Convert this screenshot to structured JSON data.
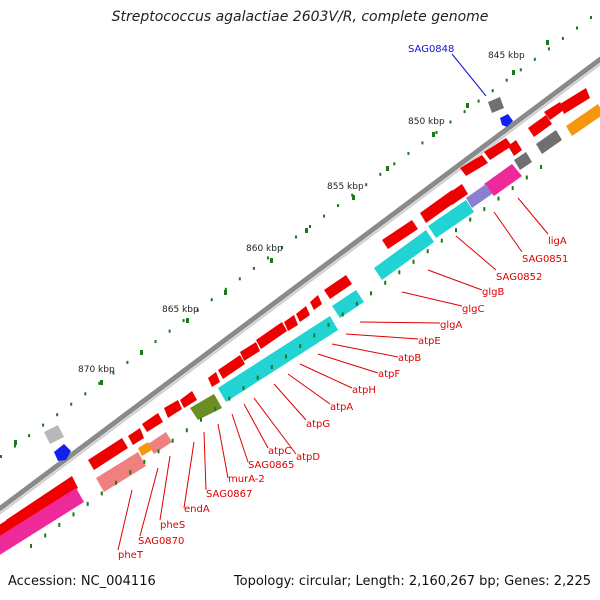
{
  "map": {
    "title": "Streptococcus agalactiae 2603V/R, complete genome",
    "accession": "Accession: NC_004116",
    "summary": "Topology: circular; Length: 2,160,267 bp; Genes: 2,225"
  },
  "scale_ticks": [
    "845 kbp",
    "850 kbp",
    "855 kbp",
    "860 kbp",
    "865 kbp",
    "870 kbp"
  ],
  "gene_labels": [
    {
      "text": "SAG0848",
      "color": "#1010e0"
    },
    {
      "text": "ligA",
      "color": "#e00000"
    },
    {
      "text": "SAG0851",
      "color": "#e00000"
    },
    {
      "text": "SAG0852",
      "color": "#e00000"
    },
    {
      "text": "glgB",
      "color": "#e00000"
    },
    {
      "text": "glgC",
      "color": "#e00000"
    },
    {
      "text": "glgA",
      "color": "#e00000"
    },
    {
      "text": "atpE",
      "color": "#e00000"
    },
    {
      "text": "atpB",
      "color": "#e00000"
    },
    {
      "text": "atpF",
      "color": "#e00000"
    },
    {
      "text": "atpH",
      "color": "#e00000"
    },
    {
      "text": "atpA",
      "color": "#e00000"
    },
    {
      "text": "atpG",
      "color": "#e00000"
    },
    {
      "text": "atpD",
      "color": "#e00000"
    },
    {
      "text": "atpC",
      "color": "#e00000"
    },
    {
      "text": "SAG0865",
      "color": "#e00000"
    },
    {
      "text": "murA-2",
      "color": "#e00000"
    },
    {
      "text": "SAG0867",
      "color": "#e00000"
    },
    {
      "text": "endA",
      "color": "#e00000"
    },
    {
      "text": "pheS",
      "color": "#e00000"
    },
    {
      "text": "SAG0870",
      "color": "#e00000"
    },
    {
      "text": "pheT",
      "color": "#e00000"
    }
  ],
  "colors": {
    "backbone": "#8a8a8a",
    "cds": "#ee0000",
    "cds_light": "#f08080",
    "cog_cyan": "#22d3d3",
    "cog_magenta": "#ee2a9a",
    "cog_olive": "#6b8e23",
    "cog_orange": "#f5960f",
    "cog_grey": "#707070",
    "trna_blue": "#1020ee",
    "tick_dot": "#1a7a1a"
  }
}
